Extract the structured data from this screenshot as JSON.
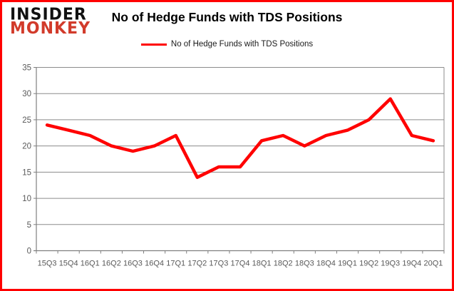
{
  "logo": {
    "line1": "INSIDER",
    "line2": "MONKEY"
  },
  "title": "No of Hedge Funds with TDS Positions",
  "legend": {
    "label": "No of Hedge Funds with TDS Positions"
  },
  "colors": {
    "line": "#ff0000",
    "frame_border": "#ff0000",
    "logo_black": "#111111",
    "logo_red": "#d23b2b",
    "gridline": "#8c8c8c",
    "axis": "#7f7f7f",
    "tick_label": "#595959",
    "background": "#ffffff"
  },
  "chart_data": {
    "type": "line",
    "title": "No of Hedge Funds with TDS Positions",
    "series_name": "No of Hedge Funds with TDS Positions",
    "categories": [
      "15Q3",
      "15Q4",
      "16Q1",
      "16Q2",
      "16Q3",
      "16Q4",
      "17Q1",
      "17Q2",
      "17Q3",
      "17Q4",
      "18Q1",
      "18Q2",
      "18Q3",
      "18Q4",
      "19Q1",
      "19Q2",
      "19Q3",
      "19Q4",
      "20Q1"
    ],
    "values": [
      24,
      23,
      22,
      20,
      19,
      20,
      22,
      14,
      16,
      16,
      21,
      22,
      20,
      22,
      23,
      25,
      29,
      22,
      21
    ],
    "xlabel": "",
    "ylabel": "",
    "ylim": [
      0,
      35
    ],
    "ytick_step": 5,
    "yticks": [
      0,
      5,
      10,
      15,
      20,
      25,
      30,
      35
    ],
    "grid": true,
    "legend_position": "top"
  }
}
